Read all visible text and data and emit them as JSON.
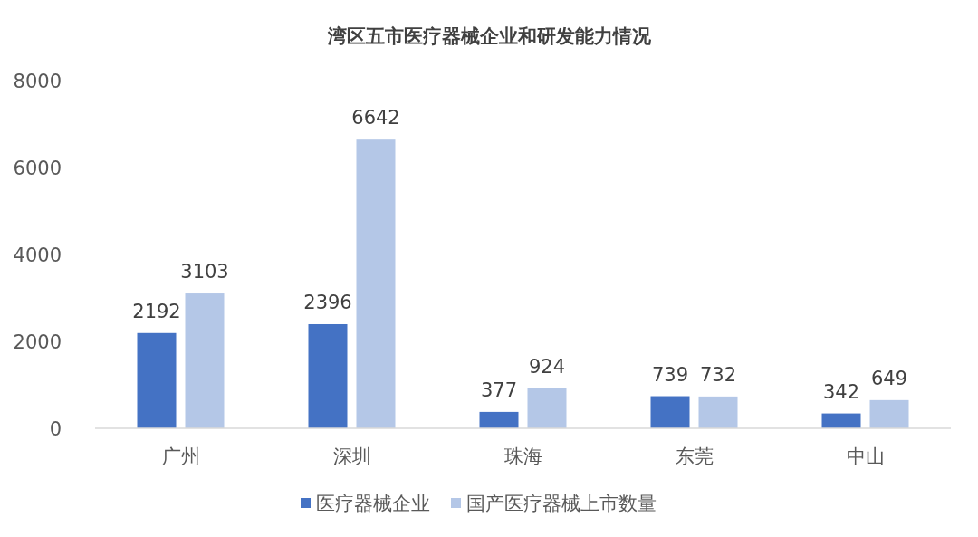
{
  "chart_data": {
    "type": "bar",
    "title": "湾区五市医疗器械企业和研发能力情况",
    "categories": [
      "广州",
      "深圳",
      "珠海",
      "东莞",
      "中山"
    ],
    "series": [
      {
        "name": "医疗器械企业",
        "color": "#4472c4",
        "values": [
          2192,
          2396,
          377,
          739,
          342
        ]
      },
      {
        "name": "国产医疗器械上市数量",
        "color": "#b4c7e7",
        "values": [
          3103,
          6642,
          924,
          732,
          649
        ]
      }
    ],
    "ylim": [
      0,
      8000
    ],
    "yticks": [
      0,
      2000,
      4000,
      6000,
      8000
    ],
    "data_labels": true,
    "legend": "bottom"
  }
}
